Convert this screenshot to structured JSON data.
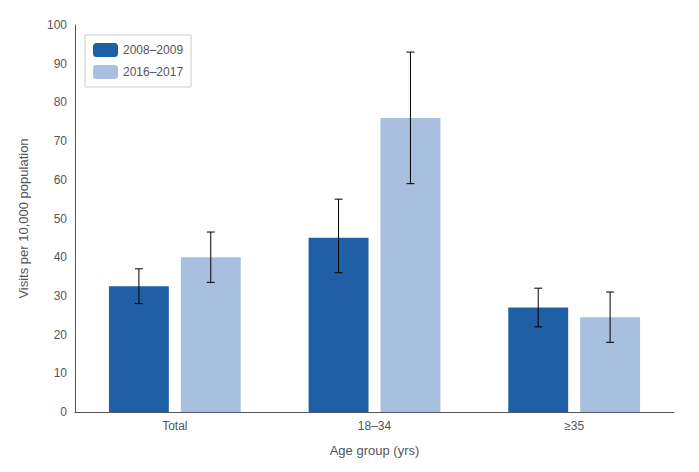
{
  "chart_data": {
    "type": "bar",
    "xlabel": "Age group (yrs)",
    "ylabel": "Visits per 10,000 population",
    "categories": [
      "Total",
      "18–34",
      "≥35"
    ],
    "series": [
      {
        "name": "2008–2009",
        "color": "#1f5fa6",
        "values": [
          32.5,
          45.0,
          27.0
        ],
        "errors_low": [
          4.5,
          9.0,
          5.0
        ],
        "errors_high": [
          4.5,
          10.0,
          5.0
        ]
      },
      {
        "name": "2016–2017",
        "color": "#a8bfdf",
        "values": [
          40.0,
          76.0,
          24.5
        ],
        "errors_low": [
          6.5,
          17.0,
          6.5
        ],
        "errors_high": [
          6.5,
          17.0,
          6.5
        ]
      }
    ],
    "ylim": [
      0,
      100
    ],
    "yticks": [
      0,
      10,
      20,
      30,
      40,
      50,
      60,
      70,
      80,
      90,
      100
    ],
    "grid": false,
    "legend": "upper left"
  }
}
